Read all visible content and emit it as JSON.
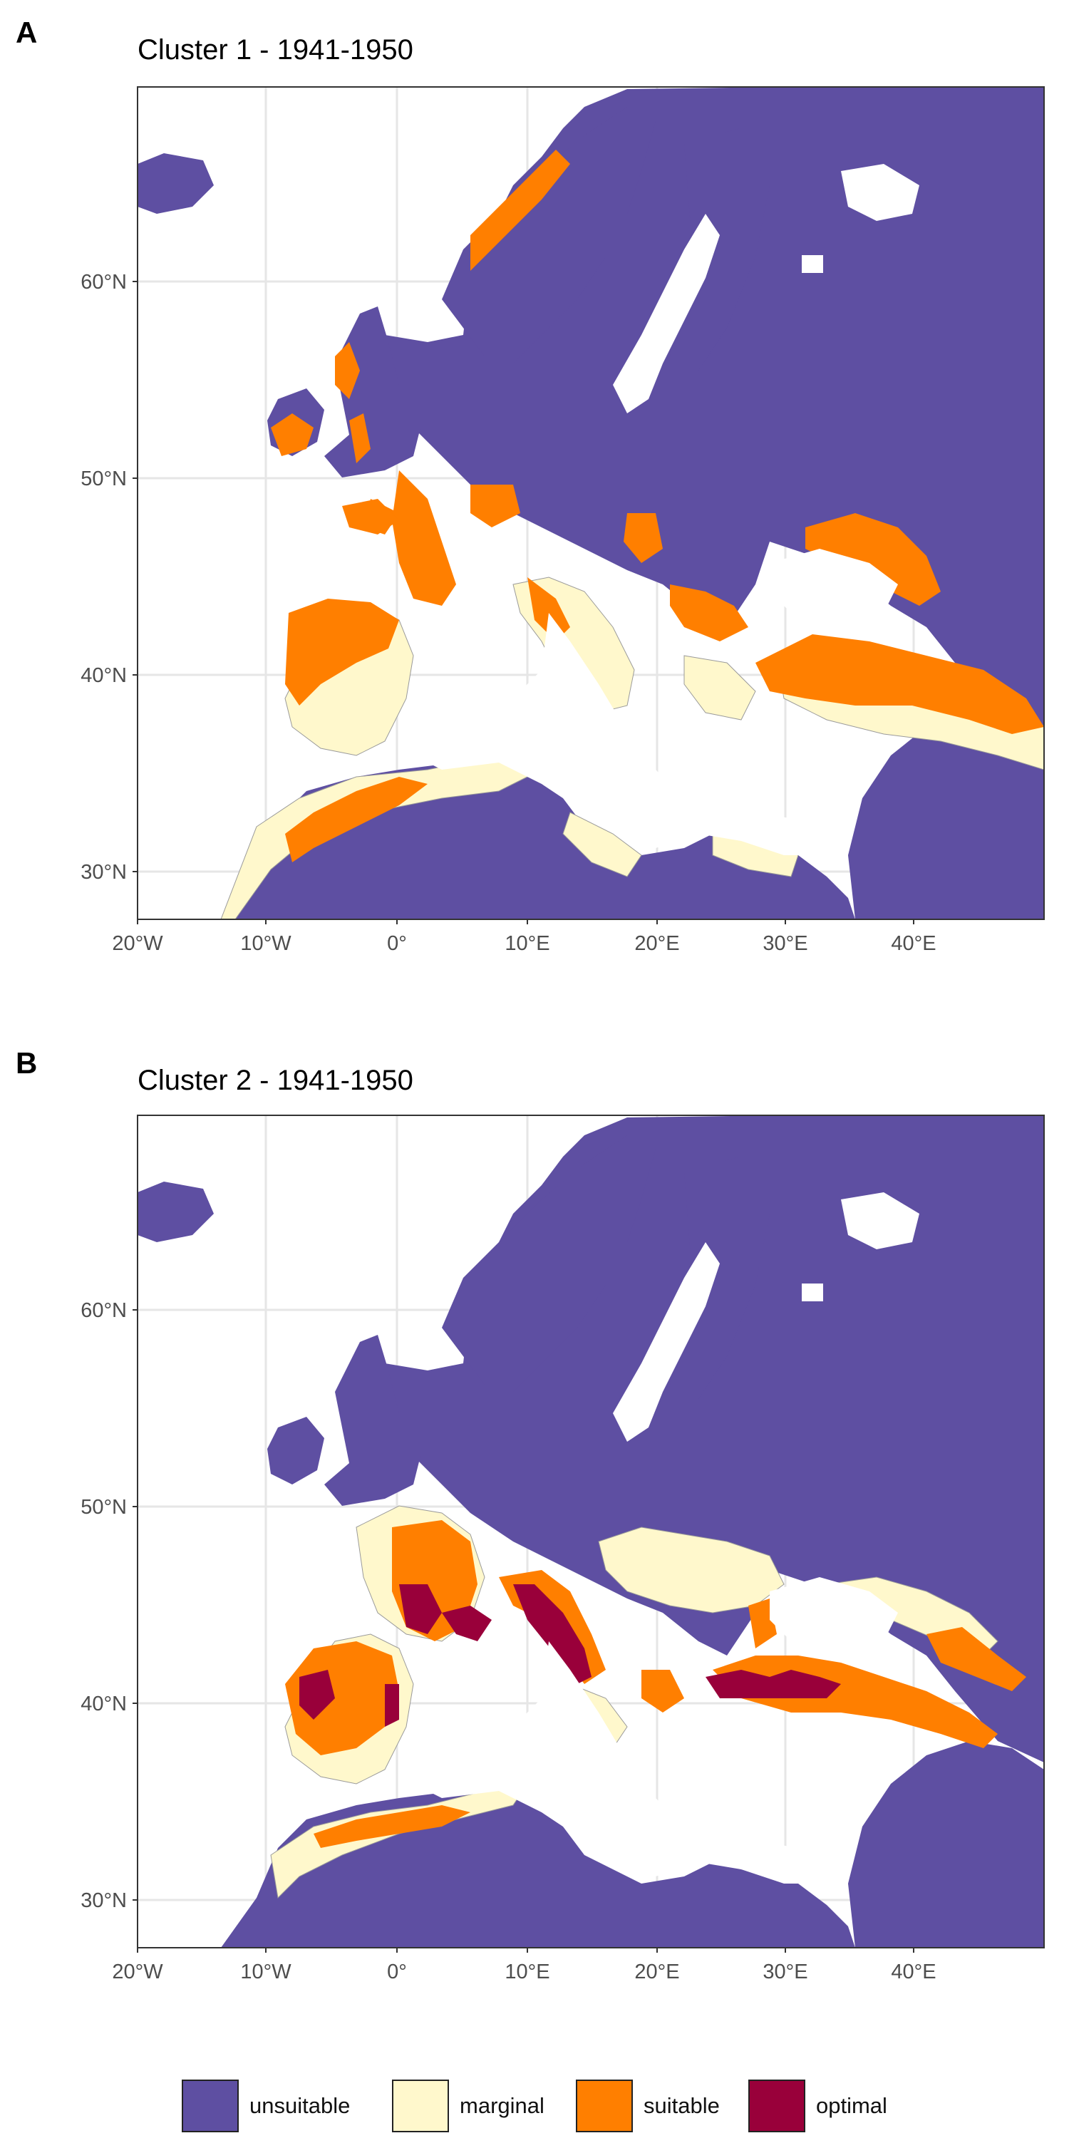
{
  "panels": [
    {
      "letter": "A",
      "title": "Cluster 1 - 1941-1950",
      "y_ticks": [
        "60°N",
        "50°N",
        "40°N",
        "30°N"
      ],
      "x_ticks": [
        "20°W",
        "10°W",
        "0°",
        "10°E",
        "20°E",
        "30°E",
        "40°E"
      ]
    },
    {
      "letter": "B",
      "title": "Cluster 2 - 1941-1950",
      "y_ticks": [
        "60°N",
        "50°N",
        "40°N",
        "30°N"
      ],
      "x_ticks": [
        "20°W",
        "10°W",
        "0°",
        "10°E",
        "20°E",
        "30°E",
        "40°E"
      ]
    }
  ],
  "legend": {
    "items": [
      {
        "label": "unsuitable",
        "color": "#5e4fa2"
      },
      {
        "label": "marginal",
        "color": "#fff8cc"
      },
      {
        "label": "suitable",
        "color": "#ff7f00"
      },
      {
        "label": "optimal",
        "color": "#99003a"
      }
    ]
  },
  "colors": {
    "unsuitable": "#5e4fa2",
    "marginal": "#fff8cc",
    "suitable": "#ff7f00",
    "optimal": "#99003a",
    "water": "#ffffff",
    "grid": "#e6e6e6",
    "border": "#9a9a9a"
  }
}
